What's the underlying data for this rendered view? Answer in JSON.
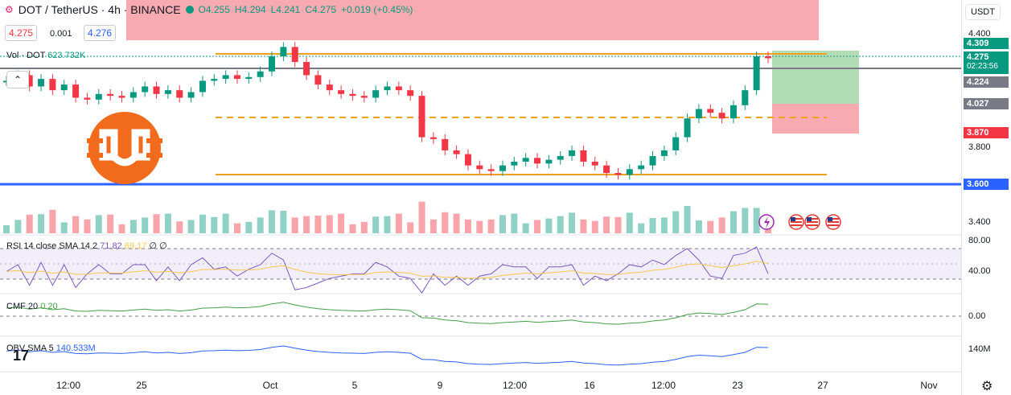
{
  "legend": {
    "symbol": "DOT / TetherUS · 4h · BINANCE",
    "open": "O4.255",
    "high": "H4.294",
    "low": "L4.241",
    "close": "C4.275",
    "change": "+0.019 (+0.45%)"
  },
  "trade": {
    "sell_price": "4.275",
    "spread": "0.001",
    "buy_price": "4.276"
  },
  "volume_legend": {
    "label": "Vol · DOT",
    "value": "623.732K"
  },
  "currency_button": "USDT",
  "price_axis": {
    "ticks": [
      "4.400",
      "3.800",
      "3.400"
    ],
    "labels": [
      {
        "text": "4.309",
        "bg": "#089981"
      },
      {
        "text": "4.275",
        "sub": "02:23:56",
        "bg": "#089981"
      },
      {
        "text": "4.224",
        "bg": "#787b86"
      },
      {
        "text": "4.027",
        "bg": "#787b86"
      },
      {
        "text": "3.870",
        "bg": "#f23645"
      },
      {
        "text": "3.600",
        "bg": "#2962ff"
      }
    ]
  },
  "rsi": {
    "label": "RSI 14 close SMA 14 2",
    "v1": "71.82",
    "v2": "69.17",
    "v3": "∅",
    "v4": "∅",
    "ticks": [
      "80.00",
      "40.00"
    ]
  },
  "cmf": {
    "label": "CMF 20",
    "value": "0.20",
    "tick": "0.00"
  },
  "obv": {
    "label": "OBV SMA 5",
    "value": "140.533M",
    "tick": "140M"
  },
  "x_axis": [
    "12:00",
    "25",
    "Oct",
    "5",
    "9",
    "12:00",
    "16",
    "12:00",
    "23",
    "27",
    "Nov"
  ],
  "colors": {
    "up": "#089981",
    "down": "#f23645",
    "level": "#f0a020",
    "support": "#2962ff"
  },
  "icons": {
    "logo": "tradingview-logo",
    "settings": "gear-icon",
    "flag": "us-flag-icon"
  },
  "chart_data": {
    "type": "line",
    "series": [
      {
        "name": "DOT / TetherUS",
        "values": [
          4.15,
          4.18,
          4.12,
          4.16,
          4.1,
          4.13,
          4.06,
          4.05,
          4.08,
          4.07,
          4.06,
          4.09,
          4.12,
          4.08,
          4.1,
          4.06,
          4.09,
          4.15,
          4.16,
          4.18,
          4.16,
          4.17,
          4.2,
          4.28,
          4.33,
          4.25,
          4.18,
          4.13,
          4.1,
          4.08,
          4.07,
          4.06,
          4.1,
          4.12,
          4.1,
          4.07,
          3.85,
          3.84,
          3.78,
          3.76,
          3.7,
          3.68,
          3.67,
          3.7,
          3.72,
          3.74,
          3.71,
          3.73,
          3.75,
          3.78,
          3.72,
          3.7,
          3.66,
          3.65,
          3.68,
          3.7,
          3.75,
          3.78,
          3.85,
          3.95,
          4.0,
          3.98,
          3.95,
          4.02,
          4.1,
          4.28,
          4.27
        ]
      }
    ]
  }
}
